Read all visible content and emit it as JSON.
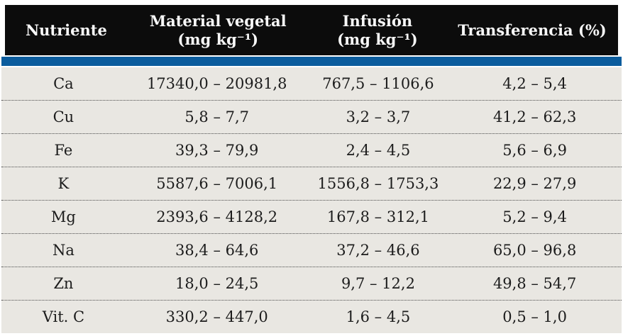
{
  "table": {
    "columns": [
      {
        "label": "Nutriente",
        "unit": ""
      },
      {
        "label": "Material vegetal",
        "unit": "(mg kg⁻¹)"
      },
      {
        "label": "Infusión",
        "unit": "(mg kg⁻¹)"
      },
      {
        "label": "Transferencia (%)",
        "unit": ""
      }
    ],
    "rows": [
      [
        "Ca",
        "17340,0 – 20981,8",
        "767,5 – 1106,6",
        "4,2 – 5,4"
      ],
      [
        "Cu",
        "5,8 – 7,7",
        "3,2 – 3,7",
        "41,2 – 62,3"
      ],
      [
        "Fe",
        "39,3 – 79,9",
        "2,4 – 4,5",
        "5,6 – 6,9"
      ],
      [
        "K",
        "5587,6 – 7006,1",
        "1556,8 – 1753,3",
        "22,9 – 27,9"
      ],
      [
        "Mg",
        "2393,6 – 4128,2",
        "167,8 – 312,1",
        "5,2 – 9,4"
      ],
      [
        "Na",
        "38,4 – 64,6",
        "37,2 – 46,6",
        "65,0 – 96,8"
      ],
      [
        "Zn",
        "18,0 – 24,5",
        "9,7 – 12,2",
        "49,8 – 54,7"
      ],
      [
        "Vit. C",
        "330,2 – 447,0",
        "1,6 – 4,5",
        "0,5 – 1,0"
      ]
    ]
  },
  "colors": {
    "header_bg": "#0c0c0c",
    "header_text": "#f8f8f8",
    "accent_bar": "#0b5c9d",
    "body_bg": "#e9e7e2",
    "row_text": "#1c1c1c"
  },
  "chart_data": {
    "type": "table",
    "title": "",
    "columns": [
      "Nutriente",
      "Material vegetal (mg kg⁻¹)",
      "Infusión (mg kg⁻¹)",
      "Transferencia (%)"
    ],
    "rows": [
      {
        "nutriente": "Ca",
        "material_vegetal_min": 17340.0,
        "material_vegetal_max": 20981.8,
        "infusion_min": 767.5,
        "infusion_max": 1106.6,
        "transferencia_min": 4.2,
        "transferencia_max": 5.4
      },
      {
        "nutriente": "Cu",
        "material_vegetal_min": 5.8,
        "material_vegetal_max": 7.7,
        "infusion_min": 3.2,
        "infusion_max": 3.7,
        "transferencia_min": 41.2,
        "transferencia_max": 62.3
      },
      {
        "nutriente": "Fe",
        "material_vegetal_min": 39.3,
        "material_vegetal_max": 79.9,
        "infusion_min": 2.4,
        "infusion_max": 4.5,
        "transferencia_min": 5.6,
        "transferencia_max": 6.9
      },
      {
        "nutriente": "K",
        "material_vegetal_min": 5587.6,
        "material_vegetal_max": 7006.1,
        "infusion_min": 1556.8,
        "infusion_max": 1753.3,
        "transferencia_min": 22.9,
        "transferencia_max": 27.9
      },
      {
        "nutriente": "Mg",
        "material_vegetal_min": 2393.6,
        "material_vegetal_max": 4128.2,
        "infusion_min": 167.8,
        "infusion_max": 312.1,
        "transferencia_min": 5.2,
        "transferencia_max": 9.4
      },
      {
        "nutriente": "Na",
        "material_vegetal_min": 38.4,
        "material_vegetal_max": 64.6,
        "infusion_min": 37.2,
        "infusion_max": 46.6,
        "transferencia_min": 65.0,
        "transferencia_max": 96.8
      },
      {
        "nutriente": "Zn",
        "material_vegetal_min": 18.0,
        "material_vegetal_max": 24.5,
        "infusion_min": 9.7,
        "infusion_max": 12.2,
        "transferencia_min": 49.8,
        "transferencia_max": 54.7
      },
      {
        "nutriente": "Vit. C",
        "material_vegetal_min": 330.2,
        "material_vegetal_max": 447.0,
        "infusion_min": 1.6,
        "infusion_max": 4.5,
        "transferencia_min": 0.5,
        "transferencia_max": 1.0
      }
    ]
  }
}
